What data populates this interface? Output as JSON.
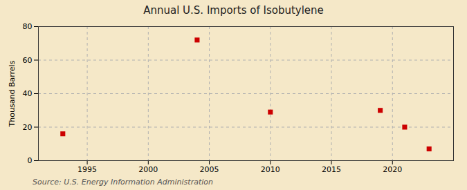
{
  "chart_data": {
    "type": "scatter",
    "title": "Annual U.S. Imports of Isobutylene",
    "ylabel": "Thousand Barrels",
    "annotation": "Source: U.S. Energy Information Administration",
    "x": [
      1993,
      2004,
      2010,
      2019,
      2021,
      2023
    ],
    "values": [
      16,
      72,
      29,
      30,
      20,
      7
    ],
    "color": "#cc0000",
    "marker": "square",
    "xlim": [
      1991,
      2025
    ],
    "xticks": [
      1995,
      2000,
      2005,
      2010,
      2015,
      2020
    ],
    "ylim": [
      0,
      80
    ],
    "yticks": [
      0,
      20,
      40,
      60,
      80
    ],
    "grid": true
  }
}
